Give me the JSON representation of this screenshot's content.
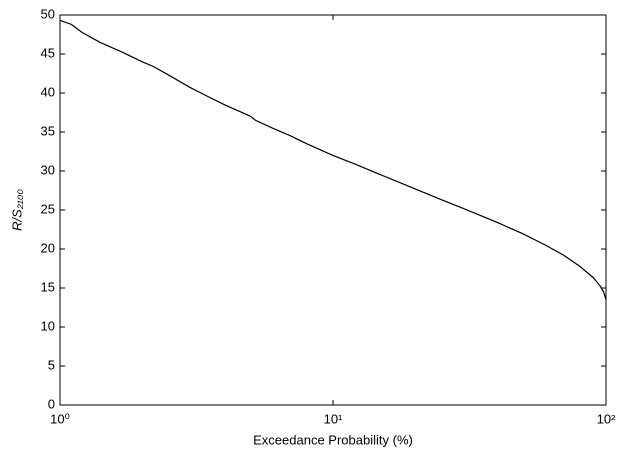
{
  "chart_data": {
    "type": "line",
    "xlabel": "Exceedance Probability (%)",
    "ylabel": "R/S₂₁₀₀",
    "xscale": "log",
    "x": [
      1,
      1.1,
      1.2,
      1.4,
      1.7,
      2,
      2.2,
      2.5,
      3,
      3.5,
      4,
      5,
      5.2,
      6,
      7,
      8,
      10,
      12,
      15,
      20,
      25,
      30,
      40,
      50,
      60,
      70,
      80,
      90,
      95,
      98,
      100
    ],
    "series": [
      {
        "color": "#000000",
        "values": [
          49.3,
          48.8,
          47.8,
          46.5,
          45.2,
          44.0,
          43.4,
          42.3,
          40.7,
          39.5,
          38.5,
          37.0,
          36.5,
          35.5,
          34.5,
          33.5,
          32.0,
          30.9,
          29.5,
          27.7,
          26.3,
          25.2,
          23.4,
          21.9,
          20.5,
          19.2,
          17.8,
          16.3,
          15.3,
          14.5,
          13.5
        ]
      }
    ],
    "xlim": [
      1,
      100
    ],
    "xticks": [
      {
        "value": 1,
        "label": "10⁰"
      },
      {
        "value": 10,
        "label": "10¹"
      },
      {
        "value": 100,
        "label": "10²"
      }
    ],
    "ylim": [
      0,
      50
    ],
    "yticks": [
      0,
      5,
      10,
      15,
      20,
      25,
      30,
      35,
      40,
      45,
      50
    ]
  }
}
